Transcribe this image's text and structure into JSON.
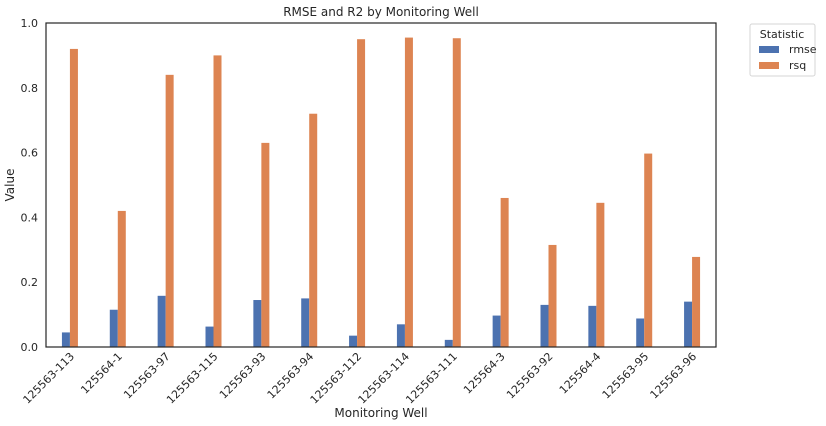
{
  "chart_data": {
    "type": "bar",
    "title": "RMSE and R2 by Monitoring Well",
    "xlabel": "Monitoring Well",
    "ylabel": "Value",
    "ylim": [
      0,
      1.0
    ],
    "yticks": [
      "0.0",
      "0.2",
      "0.4",
      "0.6",
      "0.8",
      "1.0"
    ],
    "categories": [
      "125563-113",
      "125564-1",
      "125563-97",
      "125563-115",
      "125563-93",
      "125563-94",
      "125563-112",
      "125563-114",
      "125563-111",
      "125564-3",
      "125563-92",
      "125564-4",
      "125563-95",
      "125563-96"
    ],
    "series": [
      {
        "name": "rmse",
        "color": "#4c72b0",
        "values": [
          0.045,
          0.115,
          0.158,
          0.063,
          0.145,
          0.15,
          0.035,
          0.07,
          0.022,
          0.097,
          0.13,
          0.127,
          0.088,
          0.14
        ]
      },
      {
        "name": "rsq",
        "color": "#dd8452",
        "values": [
          0.92,
          0.42,
          0.84,
          0.9,
          0.63,
          0.72,
          0.95,
          0.955,
          0.953,
          0.46,
          0.315,
          0.445,
          0.597,
          0.278
        ]
      }
    ],
    "legend": {
      "title": "Statistic",
      "placement": "outside-top-right"
    },
    "grid": false
  }
}
